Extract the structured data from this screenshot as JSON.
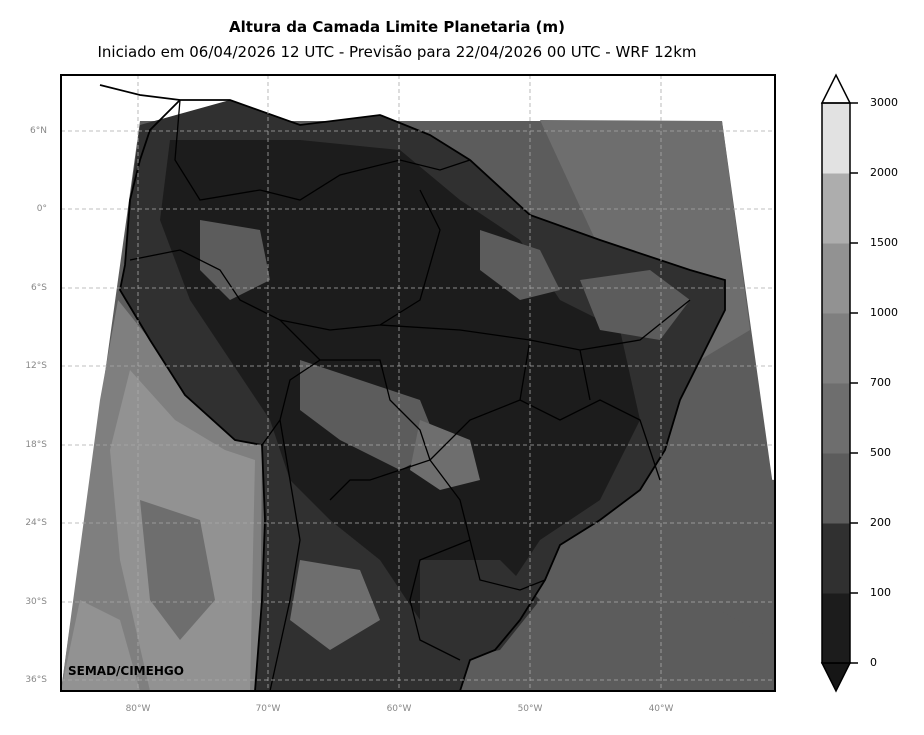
{
  "header": {
    "title": "Altura da Camada Limite Planetaria (m)",
    "subtitle": "Iniciado em 06/04/2026 12 UTC - Previsão para 22/04/2026 00 UTC - WRF 12km"
  },
  "map": {
    "lat_labels": [
      "6°N",
      "0°",
      "6°S",
      "12°S",
      "18°S",
      "24°S",
      "30°S",
      "36°S"
    ],
    "lon_labels": [
      "80°W",
      "70°W",
      "60°W",
      "50°W",
      "40°W"
    ],
    "credit": "SEMAD/CIMEHGO"
  },
  "colorbar": {
    "ticks": [
      "0",
      "100",
      "200",
      "500",
      "700",
      "1000",
      "1500",
      "2000",
      "3000"
    ],
    "colors": [
      "#1c1c1c",
      "#303030",
      "#5c5c5c",
      "#6e6e6e",
      "#7f7f7f",
      "#929292",
      "#adadad",
      "#e2e2e2"
    ],
    "under_color": "#161616",
    "over_color": "#ffffff"
  }
}
